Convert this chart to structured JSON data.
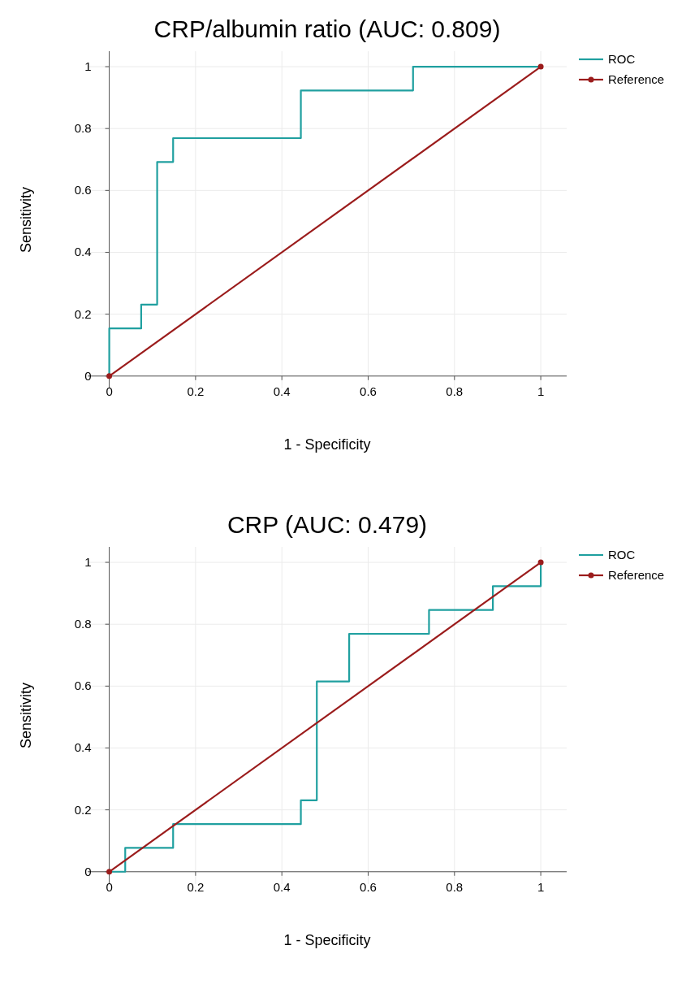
{
  "chart_data": [
    {
      "type": "line",
      "title": "CRP/albumin ratio (AUC: 0.809)",
      "xlabel": "1 - Specificity",
      "ylabel": "Sensitivity",
      "xlim": [
        -0.05,
        1.06
      ],
      "ylim": [
        -0.04,
        1.05
      ],
      "xticks": [
        0,
        0.2,
        0.4,
        0.6,
        0.8,
        1
      ],
      "yticks": [
        0,
        0.2,
        0.4,
        0.6,
        0.8,
        1
      ],
      "grid": true,
      "legend": "top right",
      "series": [
        {
          "name": "ROC",
          "color": "#20a0a0",
          "marker": "none",
          "x": [
            0,
            0,
            0.074,
            0.074,
            0.111,
            0.111,
            0.148,
            0.148,
            0.444,
            0.444,
            0.704,
            0.704,
            1
          ],
          "values": [
            0,
            0.154,
            0.154,
            0.231,
            0.231,
            0.692,
            0.692,
            0.769,
            0.769,
            0.923,
            0.923,
            1,
            1
          ]
        },
        {
          "name": "Reference",
          "color": "#9b1c1c",
          "marker": "circle",
          "x": [
            0,
            1
          ],
          "values": [
            0,
            1
          ]
        }
      ]
    },
    {
      "type": "line",
      "title": "CRP (AUC: 0.479)",
      "xlabel": "1 - Specificity",
      "ylabel": "Sensitivity",
      "xlim": [
        -0.05,
        1.06
      ],
      "ylim": [
        -0.04,
        1.05
      ],
      "xticks": [
        0,
        0.2,
        0.4,
        0.6,
        0.8,
        1
      ],
      "yticks": [
        0,
        0.2,
        0.4,
        0.6,
        0.8,
        1
      ],
      "grid": true,
      "legend": "top right",
      "series": [
        {
          "name": "ROC",
          "color": "#20a0a0",
          "marker": "none",
          "x": [
            0,
            0.037,
            0.037,
            0.148,
            0.148,
            0.444,
            0.444,
            0.481,
            0.481,
            0.556,
            0.556,
            0.741,
            0.741,
            0.889,
            0.889,
            1,
            1
          ],
          "values": [
            0,
            0,
            0.077,
            0.077,
            0.154,
            0.154,
            0.231,
            0.231,
            0.615,
            0.615,
            0.769,
            0.769,
            0.846,
            0.846,
            0.923,
            0.923,
            1
          ]
        },
        {
          "name": "Reference",
          "color": "#9b1c1c",
          "marker": "circle",
          "x": [
            0,
            1
          ],
          "values": [
            0,
            1
          ]
        }
      ]
    }
  ]
}
